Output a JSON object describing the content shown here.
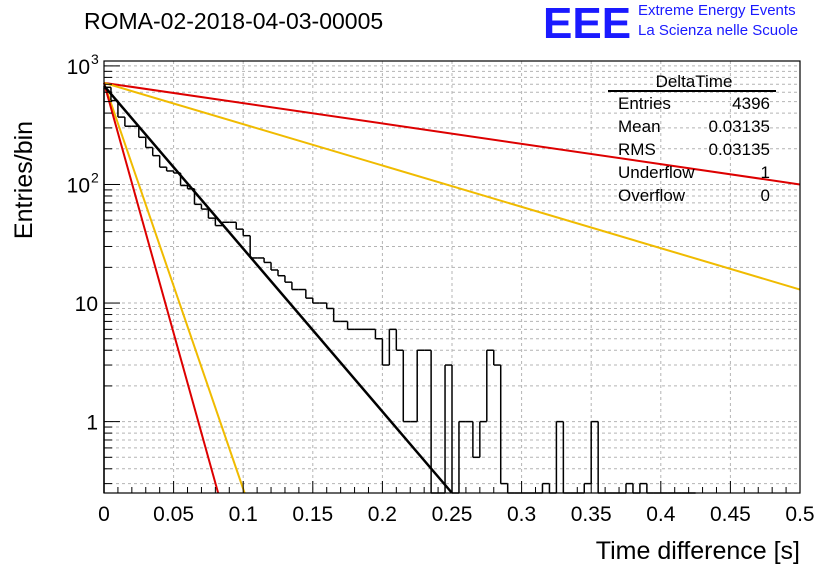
{
  "header": {
    "run_title": "ROMA-02-2018-04-03-00005",
    "logo_letters": "EEE",
    "logo_line1": "Extreme Energy Events",
    "logo_line2": "La Scienza nelle Scuole",
    "logo_color": "#1a1aff"
  },
  "stats_box": {
    "title": "DeltaTime",
    "rows": [
      {
        "key": "Entries",
        "value": "4396"
      },
      {
        "key": "Mean",
        "value": "0.03135"
      },
      {
        "key": "RMS",
        "value": "0.03135"
      },
      {
        "key": "Underflow",
        "value": "1"
      },
      {
        "key": "Overflow",
        "value": "0"
      }
    ]
  },
  "chart_data": {
    "type": "step-histogram",
    "title": "ROMA-02-2018-04-03-00005",
    "xlabel": "Time difference [s]",
    "ylabel": "Entries/bin",
    "xlim": [
      0,
      0.5
    ],
    "ylim": [
      0.25,
      1100
    ],
    "yscale": "log",
    "grid": true,
    "x_ticks": [
      {
        "v": 0,
        "label": "0"
      },
      {
        "v": 0.05,
        "label": "0.05"
      },
      {
        "v": 0.1,
        "label": "0.1"
      },
      {
        "v": 0.15,
        "label": "0.15"
      },
      {
        "v": 0.2,
        "label": "0.2"
      },
      {
        "v": 0.25,
        "label": "0.25"
      },
      {
        "v": 0.3,
        "label": "0.3"
      },
      {
        "v": 0.35,
        "label": "0.35"
      },
      {
        "v": 0.4,
        "label": "0.4"
      },
      {
        "v": 0.45,
        "label": "0.45"
      },
      {
        "v": 0.5,
        "label": "0.5"
      }
    ],
    "y_ticks": [
      {
        "v": 1,
        "label": "1"
      },
      {
        "v": 10,
        "label": "10"
      },
      {
        "v": 100,
        "label": "10",
        "sup": "2"
      },
      {
        "v": 1000,
        "label": "10",
        "sup": "3"
      }
    ],
    "bin_width": 0.005,
    "bin_contents": [
      660,
      510,
      370,
      310,
      310,
      250,
      205,
      175,
      140,
      130,
      125,
      98,
      92,
      68,
      62,
      52,
      45,
      48,
      48,
      42,
      37,
      24,
      24,
      22,
      19,
      17,
      15,
      13,
      13,
      11,
      10,
      10,
      9,
      7,
      7,
      6,
      6,
      6,
      6,
      5,
      3,
      6,
      4,
      1,
      1,
      4,
      4,
      0,
      0,
      3,
      0,
      1,
      1,
      0.5,
      1,
      4,
      3,
      0.3,
      0,
      0,
      0,
      0,
      0,
      0.3,
      0,
      1,
      0,
      0,
      0,
      0.3,
      1,
      0,
      0,
      0,
      0,
      0.3,
      0,
      0.3,
      0,
      0,
      0,
      0,
      0,
      0,
      0
    ],
    "fit_lines": [
      {
        "name": "fit",
        "color": "#000000",
        "x": [
          0,
          0.25
        ],
        "y": [
          680,
          0.25
        ]
      },
      {
        "name": "limit-upper-slow",
        "color": "#dd0000",
        "x": [
          0,
          0.5
        ],
        "y": [
          720,
          100
        ]
      },
      {
        "name": "limit-lower-slow",
        "color": "#f0bb00",
        "x": [
          0,
          0.5
        ],
        "y": [
          720,
          13
        ]
      },
      {
        "name": "limit-lower-fast",
        "color": "#f0bb00",
        "x": [
          0,
          0.101
        ],
        "y": [
          720,
          0.25
        ]
      },
      {
        "name": "limit-upper-fast",
        "color": "#dd0000",
        "x": [
          0,
          0.082
        ],
        "y": [
          720,
          0.25
        ]
      }
    ]
  }
}
